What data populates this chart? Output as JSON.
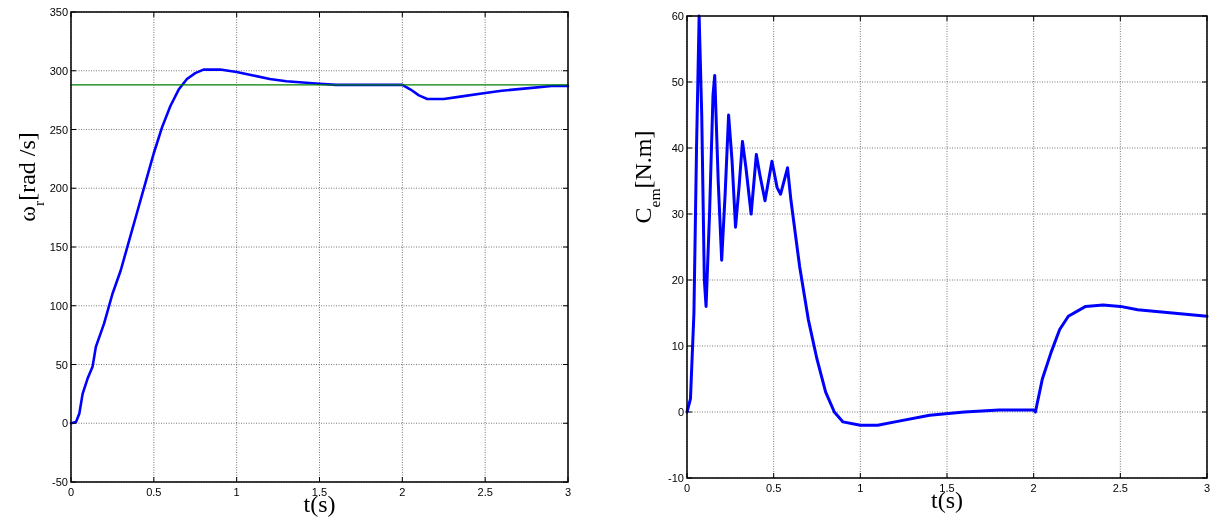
{
  "chart_data": [
    {
      "type": "line",
      "ylabel": "ω$_{r}$[rad /s]",
      "xlabel": "t(s)",
      "xlim": [
        0,
        3
      ],
      "ylim": [
        -50,
        350
      ],
      "xticks": [
        0,
        0.5,
        1,
        1.5,
        2,
        2.5,
        3
      ],
      "yticks": [
        -50,
        0,
        50,
        100,
        150,
        200,
        250,
        300,
        350
      ],
      "grid": true,
      "series": [
        {
          "color": "#0000ff",
          "x": [
            0,
            0.03,
            0.05,
            0.07,
            0.1,
            0.13,
            0.15,
            0.2,
            0.25,
            0.3,
            0.35,
            0.4,
            0.45,
            0.5,
            0.55,
            0.6,
            0.65,
            0.7,
            0.75,
            0.8,
            0.9,
            1.0,
            1.1,
            1.2,
            1.3,
            1.4,
            1.5,
            1.6,
            1.8,
            2.0,
            2.05,
            2.1,
            2.15,
            2.25,
            2.35,
            2.5,
            2.6,
            2.75,
            2.9,
            3.0
          ],
          "values": [
            0,
            1,
            8,
            25,
            38,
            48,
            65,
            85,
            110,
            130,
            155,
            180,
            205,
            230,
            252,
            270,
            284,
            293,
            298,
            301,
            301,
            299,
            296,
            293,
            291,
            290,
            289,
            288,
            288,
            288,
            284,
            279,
            276,
            276,
            278,
            281,
            283,
            285,
            287,
            287
          ]
        },
        {
          "color": "#008000",
          "x": [
            0,
            3
          ],
          "values": [
            288,
            288
          ]
        }
      ]
    },
    {
      "type": "line",
      "ylabel": "C$_{em}$[N.m]",
      "xlabel": "t(s)",
      "xlim": [
        0,
        3
      ],
      "ylim": [
        -10,
        60
      ],
      "xticks": [
        0,
        0.5,
        1,
        1.5,
        2,
        2.5,
        3
      ],
      "yticks": [
        -10,
        0,
        10,
        20,
        30,
        40,
        50,
        60
      ],
      "grid": true,
      "series": [
        {
          "color": "#0000ff",
          "x": [
            0,
            0.02,
            0.04,
            0.055,
            0.07,
            0.085,
            0.1,
            0.11,
            0.13,
            0.15,
            0.16,
            0.18,
            0.2,
            0.22,
            0.24,
            0.26,
            0.28,
            0.3,
            0.32,
            0.34,
            0.37,
            0.4,
            0.42,
            0.45,
            0.49,
            0.52,
            0.54,
            0.58,
            0.6,
            0.65,
            0.7,
            0.75,
            0.8,
            0.85,
            0.9,
            1.0,
            1.1,
            1.2,
            1.4,
            1.6,
            1.8,
            2.0,
            2.01,
            2.05,
            2.1,
            2.15,
            2.2,
            2.3,
            2.4,
            2.5,
            2.6,
            2.8,
            3.0
          ],
          "values": [
            0,
            2,
            15,
            40,
            60,
            45,
            20,
            16,
            30,
            48,
            51,
            35,
            23,
            33,
            45,
            38,
            28,
            34,
            41,
            37,
            30,
            39,
            36,
            32,
            38,
            34,
            33,
            37,
            32,
            22,
            14,
            8,
            3,
            0,
            -1.5,
            -2,
            -2,
            -1.5,
            -0.5,
            0,
            0.3,
            0.3,
            0,
            5,
            9,
            12.5,
            14.5,
            16,
            16.2,
            16,
            15.5,
            15,
            14.5
          ]
        }
      ]
    }
  ]
}
